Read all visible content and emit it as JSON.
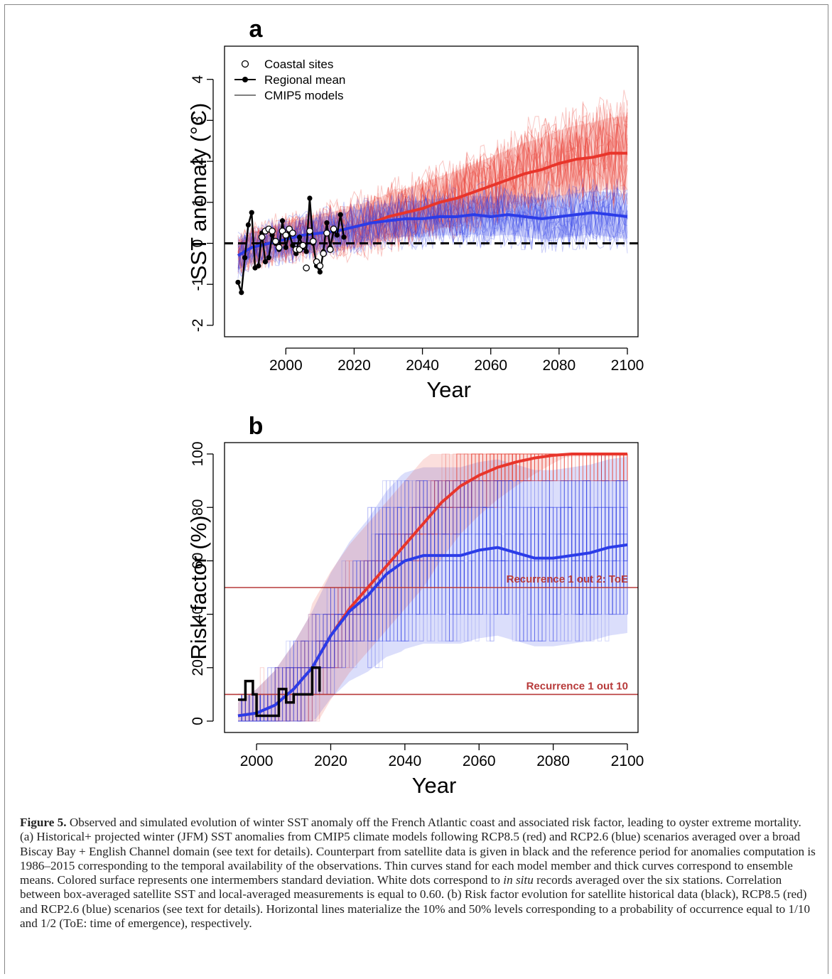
{
  "chart_data": [
    {
      "type": "line",
      "panel_label": "a",
      "xlabel": "Year",
      "ylabel": "SST anomaly (°C)",
      "xlim": [
        1986,
        2100
      ],
      "ylim": [
        -2.2,
        4.7
      ],
      "xticks": [
        2000,
        2020,
        2040,
        2060,
        2080,
        2100
      ],
      "yticks": [
        -2,
        -1,
        0,
        1,
        2,
        3,
        4
      ],
      "legend": {
        "placement": "top-left",
        "entries": [
          {
            "label": "Coastal sites",
            "marker": "open-circle"
          },
          {
            "label": "Regional mean",
            "marker": "line-filled-circle"
          },
          {
            "label": "CMIP5 models",
            "marker": "line"
          }
        ]
      },
      "reference_line": {
        "y": 0,
        "style": "dashed",
        "color": "#000000"
      },
      "series": [
        {
          "name": "RCP8.5",
          "color": "#e8352b",
          "x": [
            1986,
            1990,
            1995,
            2000,
            2005,
            2010,
            2015,
            2020,
            2025,
            2030,
            2035,
            2040,
            2045,
            2050,
            2055,
            2060,
            2065,
            2070,
            2075,
            2080,
            2085,
            2090,
            2095,
            2100
          ],
          "values": [
            -0.3,
            -0.1,
            0.0,
            0.1,
            0.2,
            0.25,
            0.3,
            0.4,
            0.5,
            0.65,
            0.75,
            0.85,
            1.0,
            1.1,
            1.25,
            1.4,
            1.55,
            1.7,
            1.8,
            1.95,
            2.05,
            2.1,
            2.2,
            2.2
          ]
        },
        {
          "name": "RCP2.6",
          "color": "#2b3ce8",
          "x": [
            1986,
            1990,
            1995,
            2000,
            2005,
            2010,
            2015,
            2020,
            2025,
            2030,
            2035,
            2040,
            2045,
            2050,
            2055,
            2060,
            2065,
            2070,
            2075,
            2080,
            2085,
            2090,
            2095,
            2100
          ],
          "values": [
            -0.3,
            -0.1,
            0.0,
            0.1,
            0.2,
            0.25,
            0.3,
            0.4,
            0.5,
            0.55,
            0.6,
            0.6,
            0.65,
            0.65,
            0.7,
            0.65,
            0.7,
            0.65,
            0.6,
            0.65,
            0.7,
            0.75,
            0.7,
            0.65
          ]
        },
        {
          "name": "Regional mean",
          "color": "#000000",
          "x": [
            1986,
            1987,
            1988,
            1989,
            1990,
            1991,
            1992,
            1993,
            1994,
            1995,
            1996,
            1997,
            1998,
            1999,
            2000,
            2001,
            2002,
            2003,
            2004,
            2005,
            2006,
            2007,
            2008,
            2009,
            2010,
            2011,
            2012,
            2013,
            2014,
            2015,
            2016,
            2017
          ],
          "values": [
            -0.95,
            -1.2,
            -0.35,
            0.45,
            0.75,
            -0.6,
            -0.55,
            0.25,
            -0.45,
            -0.35,
            0.2,
            0.0,
            -0.15,
            0.55,
            -0.1,
            0.25,
            -0.05,
            -0.25,
            0.15,
            -0.1,
            -0.2,
            1.1,
            0.0,
            -0.55,
            -0.7,
            -0.2,
            0.5,
            -0.1,
            0.3,
            0.2,
            0.7,
            0.15
          ]
        },
        {
          "name": "Coastal sites",
          "color": "#ffffff",
          "x": [
            1993,
            1994,
            1995,
            1996,
            1997,
            1998,
            1999,
            2000,
            2001,
            2002,
            2003,
            2004,
            2005,
            2006,
            2007,
            2008,
            2009,
            2010,
            2011,
            2012,
            2013,
            2014
          ],
          "values": [
            0.15,
            0.3,
            0.35,
            0.3,
            0.05,
            -0.1,
            0.3,
            0.2,
            0.35,
            0.25,
            -0.15,
            -0.15,
            -0.05,
            -0.6,
            0.3,
            0.05,
            -0.45,
            -0.55,
            -0.25,
            0.25,
            -0.15,
            0.35
          ]
        }
      ]
    },
    {
      "type": "line",
      "panel_label": "b",
      "xlabel": "Year",
      "ylabel": "Risk factor (%)",
      "xlim": [
        1995,
        2100
      ],
      "ylim": [
        0,
        100
      ],
      "xticks": [
        2000,
        2020,
        2040,
        2060,
        2080,
        2100
      ],
      "yticks": [
        0,
        20,
        40,
        60,
        80,
        100
      ],
      "hlines": [
        {
          "y": 50,
          "color": "#b73a3a",
          "label": "Recurrence 1 out 2: ToE"
        },
        {
          "y": 10,
          "color": "#b73a3a",
          "label": "Recurrence 1 out 10"
        }
      ],
      "series": [
        {
          "name": "RCP8.5",
          "color": "#e8352b",
          "x": [
            1995,
            2000,
            2005,
            2010,
            2015,
            2020,
            2025,
            2030,
            2035,
            2040,
            2045,
            2050,
            2055,
            2060,
            2065,
            2070,
            2075,
            2080,
            2085,
            2090,
            2095,
            2100
          ],
          "values": [
            2,
            3,
            6,
            12,
            20,
            32,
            42,
            50,
            58,
            66,
            74,
            82,
            88,
            92,
            95,
            97,
            98.5,
            99.5,
            100,
            100,
            100,
            100
          ]
        },
        {
          "name": "RCP2.6",
          "color": "#2b3ce8",
          "x": [
            1995,
            2000,
            2005,
            2010,
            2015,
            2020,
            2025,
            2030,
            2035,
            2040,
            2045,
            2050,
            2055,
            2060,
            2065,
            2070,
            2075,
            2080,
            2085,
            2090,
            2095,
            2100
          ],
          "values": [
            2,
            3,
            6,
            12,
            20,
            32,
            41,
            47,
            55,
            60,
            62,
            62,
            62,
            64,
            65,
            63,
            61,
            61,
            62,
            63,
            65,
            66
          ]
        },
        {
          "name": "Satellite historical",
          "color": "#000000",
          "x": [
            1995,
            1996,
            1997,
            1998,
            1999,
            2000,
            2001,
            2002,
            2003,
            2004,
            2005,
            2006,
            2007,
            2008,
            2009,
            2010,
            2011,
            2012,
            2013,
            2014,
            2015,
            2016,
            2017
          ],
          "values": [
            8,
            8,
            15,
            15,
            10,
            2,
            2,
            2,
            2,
            2,
            2,
            12,
            12,
            7,
            7,
            10,
            10,
            10,
            10,
            10,
            20,
            20,
            11
          ]
        }
      ]
    }
  ],
  "caption": {
    "figure_label": "Figure 5.",
    "text_1": " Observed and simulated evolution of winter SST anomaly off the French Atlantic coast and associated risk factor, leading to oyster extreme mortality. (a) Historical+ projected winter (JFM) SST anomalies from CMIP5 climate models following RCP8.5 (red) and RCP2.6 (blue) scenarios averaged over a broad Biscay Bay + English Channel domain (see text for details). Counterpart from satellite data is given in black and the reference period for anomalies computation is 1986–2015 corresponding to the temporal availability of the observations. Thin curves stand for each model member and thick curves correspond to ensemble means. Colored surface represents one intermembers standard deviation. White dots correspond to ",
    "italic": "in situ",
    "text_2": " records averaged over the six stations. Correlation between box-averaged satellite SST and local-averaged measurements is equal to 0.60. (b) Risk factor evolution for satellite historical data (black), RCP8.5 (red) and RCP2.6 (blue) scenarios (see text for details). Horizontal lines materialize the 10% and 50% levels corresponding to a probability of occurrence equal to 1/10 and 1/2 (ToE: time of emergence), respectively."
  }
}
